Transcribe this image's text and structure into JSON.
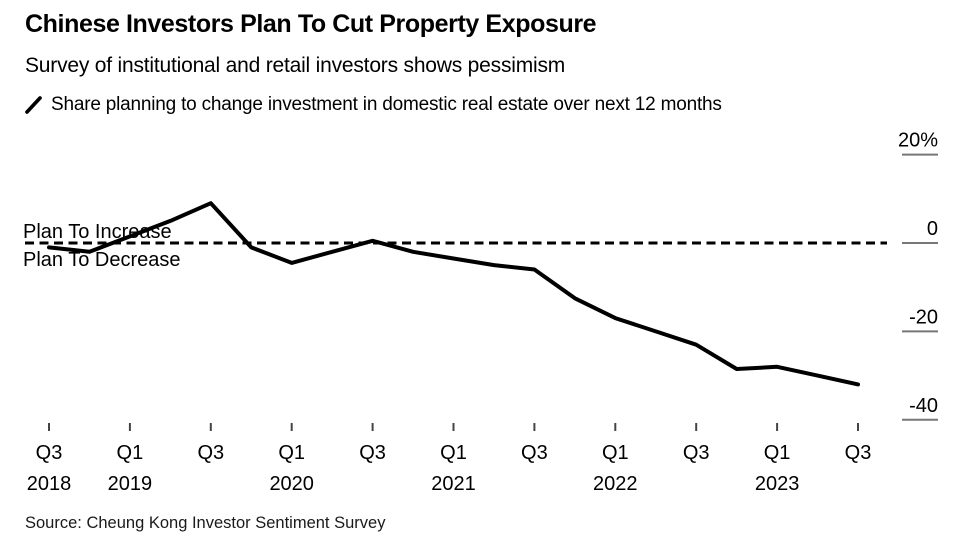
{
  "header": {
    "title": "Chinese Investors Plan To Cut Property Exposure",
    "subtitle": "Survey of institutional and retail investors shows pessimism",
    "legend": {
      "icon": "line-slash",
      "label": "Share planning to change investment in domestic real estate over next 12 months"
    }
  },
  "annotations": {
    "above_zero": "Plan To Increase",
    "below_zero": "Plan To Decrease"
  },
  "footer": {
    "source": "Source: Cheung Kong Investor Sentiment Survey"
  },
  "colors": {
    "line": "#000000",
    "zero_line": "#000000",
    "y_tick": "#777777",
    "x_tick": "#444444",
    "text": "#000000",
    "background": "#ffffff"
  },
  "chart_data": {
    "type": "line",
    "title": "Share planning to change investment in domestic real estate over next 12 months",
    "unit": "%",
    "x": [
      "Q3 2018",
      "Q4 2018",
      "Q1 2019",
      "Q2 2019",
      "Q3 2019",
      "Q4 2019",
      "Q1 2020",
      "Q2 2020",
      "Q3 2020",
      "Q4 2020",
      "Q1 2021",
      "Q2 2021",
      "Q3 2021",
      "Q4 2021",
      "Q1 2022",
      "Q2 2022",
      "Q3 2022",
      "Q4 2022",
      "Q1 2023",
      "Q2 2023",
      "Q3 2023"
    ],
    "values": [
      -1,
      -2,
      1.5,
      5,
      9,
      -1,
      -4.5,
      -2,
      0.5,
      -2,
      -3.5,
      -5,
      -6,
      -12.5,
      -17,
      -20,
      -23,
      -28.5,
      -28,
      -30,
      -32
    ],
    "ylim": [
      -44,
      24
    ],
    "grid": false,
    "legend_position": "top-left",
    "zero_line_style": "dashed",
    "yticks": [
      {
        "value": 20,
        "label": "20%"
      },
      {
        "value": 0,
        "label": "0"
      },
      {
        "value": -20,
        "label": "-20"
      },
      {
        "value": -40,
        "label": "-40"
      }
    ],
    "xticks": [
      {
        "index": 0,
        "label": "Q3",
        "year": "2018"
      },
      {
        "index": 2,
        "label": "Q1",
        "year": "2019"
      },
      {
        "index": 4,
        "label": "Q3",
        "year": ""
      },
      {
        "index": 6,
        "label": "Q1",
        "year": "2020"
      },
      {
        "index": 8,
        "label": "Q3",
        "year": ""
      },
      {
        "index": 10,
        "label": "Q1",
        "year": "2021"
      },
      {
        "index": 12,
        "label": "Q3",
        "year": ""
      },
      {
        "index": 14,
        "label": "Q1",
        "year": "2022"
      },
      {
        "index": 16,
        "label": "Q3",
        "year": ""
      },
      {
        "index": 18,
        "label": "Q1",
        "year": "2023"
      },
      {
        "index": 20,
        "label": "Q3",
        "year": ""
      }
    ]
  }
}
